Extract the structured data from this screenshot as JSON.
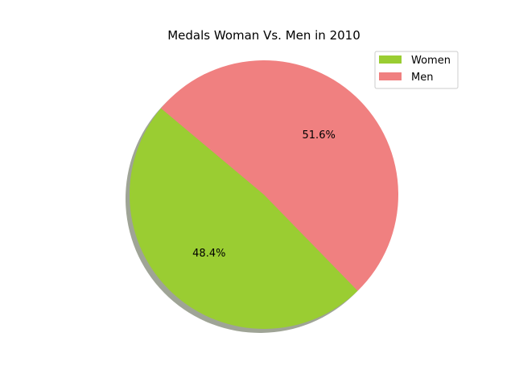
{
  "chart_data": {
    "type": "pie",
    "title": "Medals Woman Vs. Men in 2010",
    "slices": [
      {
        "label": "Women",
        "value": 48.4,
        "pct_label": "48.4%",
        "color": "#9acd32"
      },
      {
        "label": "Men",
        "value": 51.6,
        "pct_label": "51.6%",
        "color": "#f08080"
      }
    ],
    "start_angle_deg": 140,
    "shadow": true,
    "legend_position": "top-right"
  }
}
